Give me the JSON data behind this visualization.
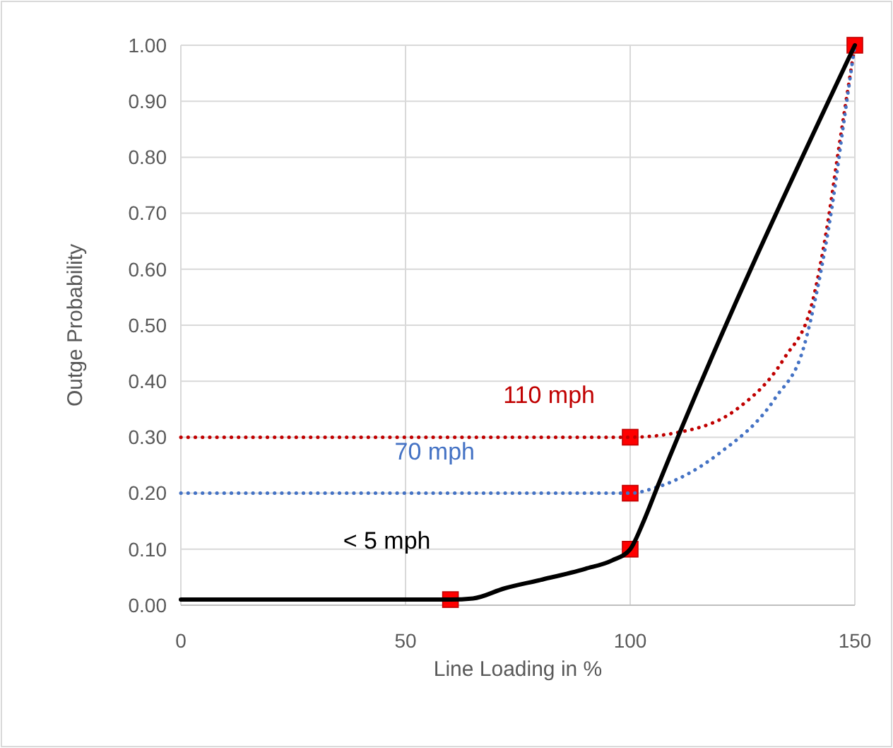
{
  "chart_data": {
    "type": "line",
    "xlabel": "Line Loading in %",
    "ylabel": "Outge Probability",
    "xlim": [
      0,
      150
    ],
    "xticks": [
      0,
      50,
      100,
      150
    ],
    "ylim": [
      0,
      1
    ],
    "yticks": [
      {
        "value": 0,
        "label": "0.00"
      },
      {
        "value": 0.1,
        "label": "0.10"
      },
      {
        "value": 0.2,
        "label": "0.20"
      },
      {
        "value": 0.3,
        "label": "0.30"
      },
      {
        "value": 0.4,
        "label": "0.40"
      },
      {
        "value": 0.5,
        "label": "0.50"
      },
      {
        "value": 0.6,
        "label": "0.60"
      },
      {
        "value": 0.7,
        "label": "0.70"
      },
      {
        "value": 0.8,
        "label": "0.80"
      },
      {
        "value": 0.9,
        "label": "0.90"
      },
      {
        "value": 1,
        "label": "1.00"
      }
    ],
    "grid": true,
    "legend": false,
    "series": [
      {
        "name": "110 mph",
        "color": "#c00000",
        "line_style": "dotted",
        "marker": "none",
        "x": [
          0,
          100,
          111.6,
          123.7,
          134.2,
          140.5,
          143.7,
          146.5,
          150
        ],
        "values": [
          0.3,
          0.3,
          0.31,
          0.35,
          0.44,
          0.54,
          0.67,
          0.82,
          1.0
        ]
      },
      {
        "name": "70 mph",
        "color": "#4472c4",
        "line_style": "dotted",
        "marker": "none",
        "x": [
          0,
          100,
          105.7,
          119.6,
          132.3,
          138.6,
          141.8,
          144.9,
          147.5,
          150
        ],
        "values": [
          0.2,
          0.2,
          0.21,
          0.27,
          0.37,
          0.46,
          0.57,
          0.71,
          0.86,
          1.0
        ]
      },
      {
        "name": "< 5 mph",
        "color": "#000000",
        "line_style": "solid",
        "marker": "none",
        "x": [
          0,
          60,
          65,
          72,
          80,
          90,
          96,
          100,
          103,
          106,
          150
        ],
        "values": [
          0.01,
          0.01,
          0.012,
          0.03,
          0.045,
          0.065,
          0.08,
          0.1,
          0.15,
          0.21,
          1.0
        ]
      },
      {
        "type": "scatter",
        "color": "#ff0000",
        "marker": "square",
        "x": [
          60,
          100,
          100,
          100,
          150
        ],
        "values": [
          0.01,
          0.1,
          0.2,
          0.3,
          1.0
        ]
      }
    ]
  }
}
